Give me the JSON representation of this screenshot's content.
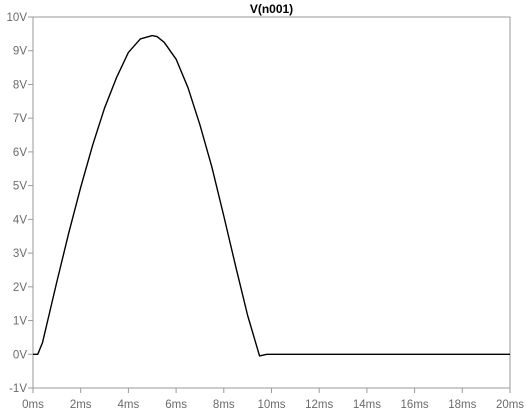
{
  "chart_data": {
    "type": "line",
    "title": "V(n001)",
    "xlabel": "",
    "ylabel": "",
    "xlim": [
      0,
      20
    ],
    "ylim": [
      -1,
      10
    ],
    "x_unit": "ms",
    "y_unit": "V",
    "x_ticks": [
      "0ms",
      "2ms",
      "4ms",
      "6ms",
      "8ms",
      "10ms",
      "12ms",
      "14ms",
      "16ms",
      "18ms",
      "20ms"
    ],
    "y_ticks": [
      "-1V",
      "0V",
      "1V",
      "2V",
      "3V",
      "4V",
      "5V",
      "6V",
      "7V",
      "8V",
      "9V",
      "10V"
    ],
    "grid": false,
    "legend": "none",
    "series": [
      {
        "color": "#000000",
        "x": [
          0,
          0.2,
          0.4,
          0.6,
          0.8,
          1.0,
          1.5,
          2.0,
          2.5,
          3.0,
          3.5,
          4.0,
          4.5,
          5.0,
          5.2,
          5.5,
          6.0,
          6.5,
          7.0,
          7.5,
          8.0,
          8.5,
          9.0,
          9.5,
          9.8,
          9.9,
          10.0,
          12.0,
          14.0,
          16.0,
          18.0,
          20.0
        ],
        "y": [
          0.0,
          0.0,
          0.35,
          0.95,
          1.55,
          2.15,
          3.6,
          4.95,
          6.2,
          7.3,
          8.2,
          8.95,
          9.35,
          9.45,
          9.42,
          9.25,
          8.75,
          7.9,
          6.8,
          5.55,
          4.1,
          2.6,
          1.15,
          -0.05,
          0.0,
          0.0,
          0.0,
          0.0,
          0.0,
          0.0,
          0.0,
          0.0
        ]
      }
    ]
  }
}
